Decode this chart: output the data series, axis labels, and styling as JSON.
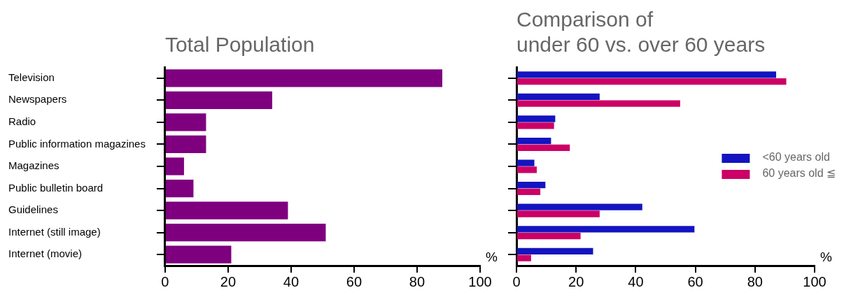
{
  "chart_data": [
    {
      "type": "bar",
      "orientation": "horizontal",
      "title": "Total Population",
      "xlabel": "%",
      "categories": [
        "Television",
        "Newspapers",
        "Radio",
        "Public information magazines",
        "Magazines",
        "Public bulletin board",
        "Guidelines",
        "Internet (still image)",
        "Internet (movie)"
      ],
      "values": [
        88,
        34,
        13,
        13,
        6,
        9,
        39,
        51,
        21
      ],
      "color": "#7f007f",
      "xlim": [
        0,
        100
      ],
      "xticks": [
        0,
        20,
        40,
        60,
        80,
        100
      ],
      "grid": false,
      "legend": false
    },
    {
      "type": "bar",
      "orientation": "horizontal",
      "title": "Comparison of\nunder 60 vs. over 60 years",
      "xlabel": "%",
      "categories": [
        null,
        null,
        null,
        null,
        null,
        null,
        null,
        null,
        null
      ],
      "series": [
        {
          "name": "<60 years old",
          "color": "#1414c0",
          "values": [
            87.1,
            27.9,
            13.0,
            11.6,
            6.0,
            9.7,
            42.2,
            59.7,
            25.7
          ]
        },
        {
          "name": "60 years old ≦",
          "color": "#cc0066",
          "values": [
            90.5,
            54.9,
            12.6,
            17.9,
            6.8,
            8.0,
            27.9,
            21.5,
            4.9
          ]
        }
      ],
      "xlim": [
        0,
        100
      ],
      "xticks": [
        0,
        20,
        40,
        60,
        80,
        100
      ],
      "grid": false,
      "legend": "right",
      "tick_labels": "x"
    }
  ]
}
